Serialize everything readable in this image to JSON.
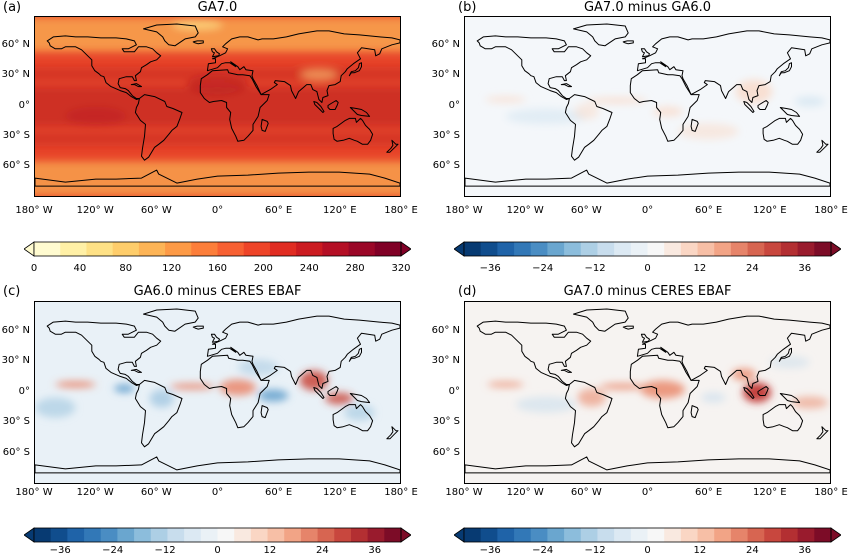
{
  "panels": [
    {
      "letter": "(a)",
      "title": "GA7.0",
      "kind": "abs",
      "colors": {
        "base": "#e8452a",
        "polar": "#f7a04c",
        "high": "#b81e21",
        "low": "#fbd27a"
      }
    },
    {
      "letter": "(b)",
      "title": "GA7.0 minus GA6.0",
      "kind": "diff-small",
      "colors": {
        "base": "#f4f7fa",
        "pos": "#f9d9c8",
        "neg": "#d5e6f1"
      }
    },
    {
      "letter": "(c)",
      "title": "GA6.0 minus CERES EBAF",
      "kind": "diff-c",
      "colors": {
        "base": "#e9f1f7",
        "pos": "#e9785a",
        "strongpos": "#c9443a",
        "neg": "#9fc6e0",
        "strongneg": "#5a9bcb"
      }
    },
    {
      "letter": "(d)",
      "title": "GA7.0 minus CERES EBAF",
      "kind": "diff-d",
      "colors": {
        "base": "#f6f3f1",
        "pos": "#ea8a6c",
        "strongpos": "#c23a35",
        "neg": "#c7dcec",
        "strongneg": "#8cb7d8"
      }
    }
  ],
  "axes": {
    "lat_ticks": [
      "60° N",
      "30° N",
      "0°",
      "30° S",
      "60° S"
    ],
    "lon_ticks": [
      "180° W",
      "120° W",
      "60° W",
      "0°",
      "60° E",
      "120° E",
      "180° E"
    ]
  },
  "colorbars": [
    {
      "type": "sequential",
      "ticks": [
        "0",
        "40",
        "80",
        "120",
        "160",
        "200",
        "240",
        "280",
        "320"
      ],
      "colors": [
        "#fffbd0",
        "#fff0a6",
        "#fee186",
        "#fecd6b",
        "#fdb456",
        "#fd9a46",
        "#fc7e3a",
        "#f76032",
        "#ee4428",
        "#e02c22",
        "#cb1b21",
        "#b40f25",
        "#9a0727",
        "#800026"
      ]
    },
    {
      "type": "diverging",
      "ticks": [
        "−36",
        "−24",
        "−12",
        "0",
        "12",
        "24",
        "36"
      ],
      "colors": [
        "#073a72",
        "#104d8d",
        "#1f63a8",
        "#3278b7",
        "#4a8dc3",
        "#6aa6cf",
        "#8cbddc",
        "#adcfe5",
        "#c8dded",
        "#dce9f3",
        "#eaf1f6",
        "#f7f7f7",
        "#f9e9e0",
        "#fad6c4",
        "#f7bfa6",
        "#f2a486",
        "#e6846a",
        "#d76551",
        "#c8473e",
        "#b32f32",
        "#991b2d",
        "#7c0c27"
      ]
    },
    {
      "type": "diverging",
      "ticks": [
        "−36",
        "−24",
        "−12",
        "0",
        "12",
        "24",
        "36"
      ],
      "colors": [
        "#073a72",
        "#104d8d",
        "#1f63a8",
        "#3278b7",
        "#4a8dc3",
        "#6aa6cf",
        "#8cbddc",
        "#adcfe5",
        "#c8dded",
        "#dce9f3",
        "#eaf1f6",
        "#f7f7f7",
        "#f9e9e0",
        "#fad6c4",
        "#f7bfa6",
        "#f2a486",
        "#e6846a",
        "#d76551",
        "#c8473e",
        "#b32f32",
        "#991b2d",
        "#7c0c27"
      ]
    },
    {
      "type": "diverging",
      "ticks": [
        "−36",
        "−24",
        "−12",
        "0",
        "12",
        "24",
        "36"
      ],
      "colors": [
        "#073a72",
        "#104d8d",
        "#1f63a8",
        "#3278b7",
        "#4a8dc3",
        "#6aa6cf",
        "#8cbddc",
        "#adcfe5",
        "#c8dded",
        "#dce9f3",
        "#eaf1f6",
        "#f7f7f7",
        "#f9e9e0",
        "#fad6c4",
        "#f7bfa6",
        "#f2a486",
        "#e6846a",
        "#d76551",
        "#c8473e",
        "#b32f32",
        "#991b2d",
        "#7c0c27"
      ]
    }
  ],
  "chart_data": [
    {
      "type": "heatmap",
      "title": "GA7.0",
      "colorbar_range": [
        0,
        320
      ],
      "colorbar_extend": "both"
    },
    {
      "type": "heatmap",
      "title": "GA7.0 minus GA6.0",
      "colorbar_range": [
        -42,
        42
      ],
      "colorbar_extend": "both"
    },
    {
      "type": "heatmap",
      "title": "GA6.0 minus CERES EBAF",
      "colorbar_range": [
        -42,
        42
      ],
      "colorbar_extend": "both"
    },
    {
      "type": "heatmap",
      "title": "GA7.0 minus CERES EBAF",
      "colorbar_range": [
        -42,
        42
      ],
      "colorbar_extend": "both"
    }
  ]
}
